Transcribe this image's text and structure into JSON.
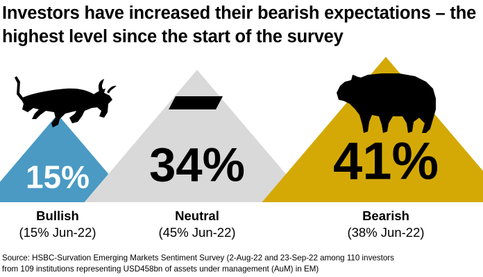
{
  "title": {
    "line1": "Investors have increased their bearish expectations – the",
    "line2": "highest level since the start of the survey"
  },
  "chart_data": {
    "type": "bar",
    "categories": [
      "Bullish",
      "Neutral",
      "Bearish"
    ],
    "values": [
      15,
      34,
      41
    ],
    "value_labels": [
      "15%",
      "34%",
      "41%"
    ],
    "previous_labels": [
      "(15% Jun-22)",
      "(45% Jun-22)",
      "(38% Jun-22)"
    ],
    "previous_values": [
      15,
      45,
      38
    ],
    "series": [
      {
        "values": [
          15,
          34,
          41
        ]
      }
    ],
    "colors": [
      "#4a9ac4",
      "#d9d9d9",
      "#d4a906"
    ],
    "icons": [
      "bull-icon",
      "dash-icon",
      "bear-icon"
    ],
    "unit": "%"
  },
  "source": {
    "line1": "Source: HSBC-Survation Emerging Markets Sentiment Survey (2-Aug-22 and 23-Sep-22 among 110 investors",
    "line2": "from 109 institutions representing USD458bn of assets under management (AuM) in EM)"
  }
}
